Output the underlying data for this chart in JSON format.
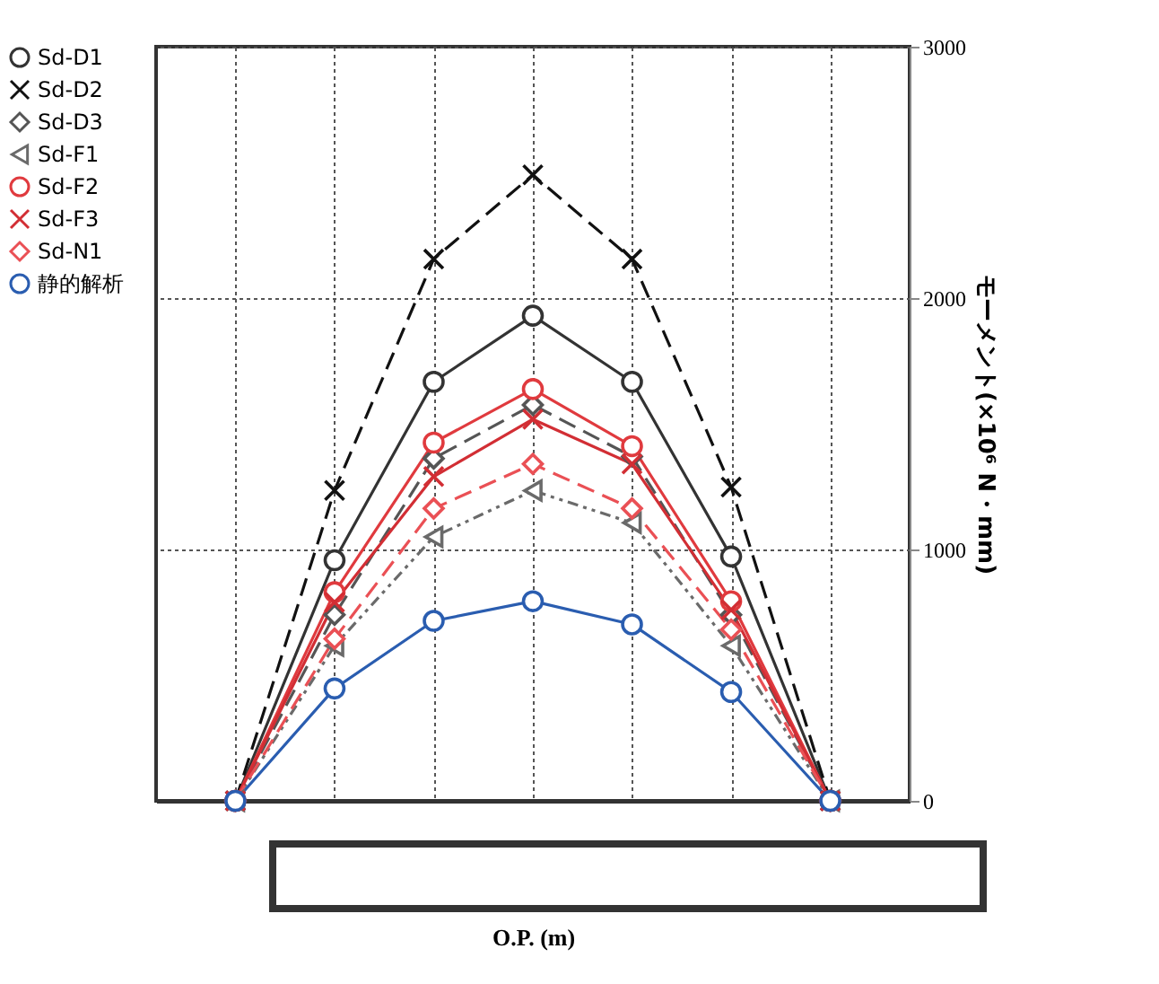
{
  "chart_data": {
    "type": "line",
    "xlabel": "O.P. (m)",
    "ylabel": "モーメント(×10⁶ N・mm)",
    "categories": [
      null,
      null,
      null,
      null,
      null,
      null,
      null
    ],
    "ylim": [
      0,
      3000
    ],
    "yticks": [
      0,
      1000,
      2000,
      3000
    ],
    "grid": true,
    "legend": "left",
    "tick_labels": "y",
    "series": [
      {
        "name": "Sd-D1",
        "color": "#333333",
        "marker": "circle",
        "line_style": "solid",
        "values": [
          0,
          957,
          1667,
          1930,
          1667,
          972,
          0
        ]
      },
      {
        "name": "Sd-D2",
        "color": "#111111",
        "marker": "cross",
        "line_style": "dashed",
        "values": [
          0,
          1235,
          2155,
          2490,
          2155,
          1248,
          0
        ]
      },
      {
        "name": "Sd-D3",
        "color": "#555555",
        "marker": "diamond",
        "line_style": "dashed",
        "values": [
          0,
          740,
          1362,
          1575,
          1370,
          740,
          0
        ]
      },
      {
        "name": "Sd-F1",
        "color": "#6a6a6a",
        "marker": "triangle",
        "line_style": "dotted",
        "values": [
          0,
          617,
          1050,
          1234,
          1106,
          617,
          0
        ]
      },
      {
        "name": "Sd-F2",
        "color": "#e03a3e",
        "marker": "circle",
        "line_style": "solid",
        "values": [
          0,
          830,
          1425,
          1638,
          1411,
          794,
          0
        ]
      },
      {
        "name": "Sd-F3",
        "color": "#d22e34",
        "marker": "cross",
        "line_style": "solid",
        "values": [
          0,
          790,
          1290,
          1518,
          1340,
          760,
          0
        ]
      },
      {
        "name": "Sd-N1",
        "color": "#ea5055",
        "marker": "diamond",
        "line_style": "dashed",
        "values": [
          0,
          645,
          1163,
          1340,
          1163,
          681,
          0
        ]
      },
      {
        "name": "静的解析",
        "color": "#2a5db0",
        "marker": "circle",
        "line_style": "solid",
        "values": [
          0,
          447,
          716,
          794,
          702,
          433,
          0
        ]
      }
    ]
  }
}
